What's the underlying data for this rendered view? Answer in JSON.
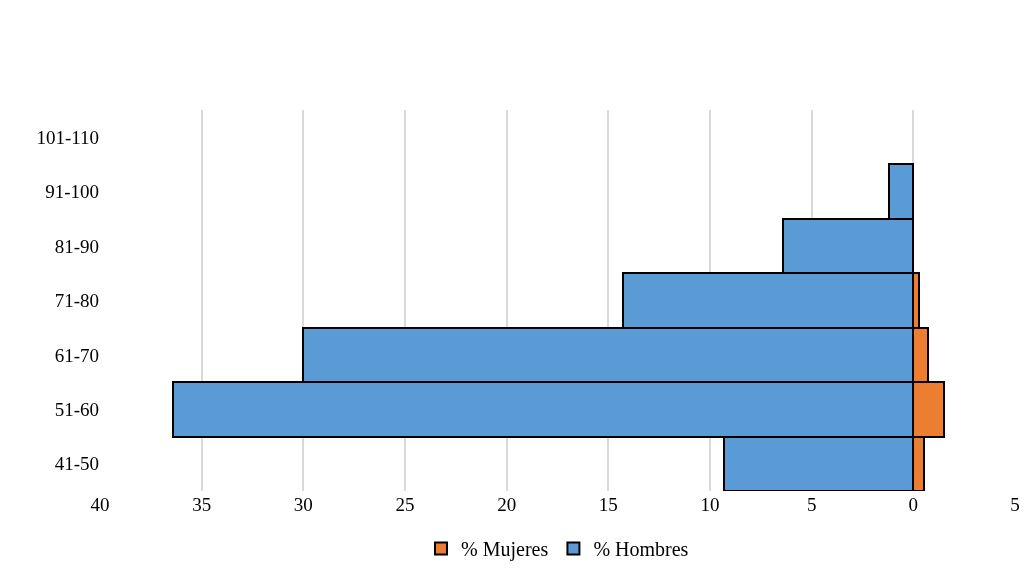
{
  "chart_data": {
    "type": "bar",
    "orientation": "horizontal",
    "stacked": true,
    "categories": [
      "101-110",
      "91-100",
      "81-90",
      "71-80",
      "61-70",
      "51-60",
      "41-50"
    ],
    "series": [
      {
        "name": "% Mujeres",
        "color": "#ed7d31",
        "values": [
          null,
          null,
          null,
          -0.3,
          -0.7,
          -1.5,
          -0.5
        ]
      },
      {
        "name": "% Hombres",
        "color": "#5b9bd5",
        "values": [
          null,
          1.2,
          6.4,
          14.3,
          30.0,
          36.4,
          9.3
        ]
      }
    ],
    "xlim": [
      40,
      -5
    ],
    "xticks": [
      40,
      35,
      30,
      25,
      20,
      15,
      10,
      5,
      0,
      {
        "value": -5,
        "label": "5"
      }
    ],
    "grid": "x",
    "legend": "bottom"
  }
}
